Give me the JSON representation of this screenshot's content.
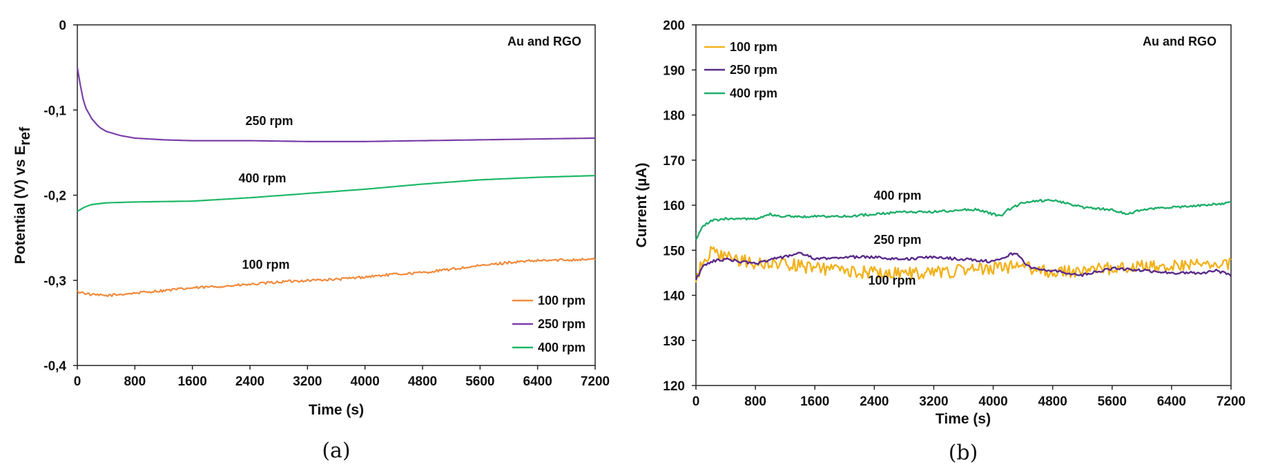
{
  "colors": {
    "r100": "#f08a3c",
    "r250": "#7a3fa8",
    "r400": "#1db866",
    "r100_b": "#f2b21c",
    "r250_b": "#5a2a8a",
    "r400_b": "#1fae6a"
  },
  "captions": {
    "a": "(a)",
    "b": "(b)"
  },
  "chart_data": [
    {
      "type": "line",
      "panel": "a",
      "title": "",
      "annotation": "Au and RGO",
      "xlabel": "Time (s)",
      "ylabel": "Potential (V) vs E",
      "ylabel_sub": "ref",
      "xlim": [
        0,
        7200
      ],
      "ylim": [
        -0.4,
        0
      ],
      "xticks": [
        0,
        800,
        1600,
        2400,
        3200,
        4000,
        4800,
        5600,
        6400,
        7200
      ],
      "xtick_labels": [
        "0",
        "800",
        "1600",
        "2400",
        "3200",
        "4000",
        "4800",
        "5600",
        "6400",
        "7200"
      ],
      "yticks": [
        0,
        -0.1,
        -0.2,
        -0.3,
        -0.4
      ],
      "ytick_labels": [
        "0",
        "-0,1",
        "-0,2",
        "-0,3",
        "-0,4"
      ],
      "legend": "lower-right",
      "series": [
        {
          "name": "100 rpm",
          "label": "100 rpm",
          "x": [
            0,
            200,
            400,
            800,
            1200,
            1600,
            2000,
            2400,
            2800,
            3200,
            3600,
            4000,
            4400,
            4800,
            5200,
            5600,
            6000,
            6400,
            6800,
            7200
          ],
          "y": [
            -0.313,
            -0.317,
            -0.318,
            -0.315,
            -0.312,
            -0.309,
            -0.307,
            -0.305,
            -0.302,
            -0.3,
            -0.299,
            -0.296,
            -0.293,
            -0.291,
            -0.287,
            -0.283,
            -0.279,
            -0.277,
            -0.276,
            -0.275
          ],
          "noise": 0.0015
        },
        {
          "name": "250 rpm",
          "label": "250 rpm",
          "x": [
            0,
            50,
            100,
            200,
            300,
            400,
            600,
            800,
            1200,
            1600,
            2400,
            3200,
            4000,
            4800,
            5600,
            6400,
            7200
          ],
          "y": [
            -0.05,
            -0.075,
            -0.095,
            -0.11,
            -0.12,
            -0.125,
            -0.13,
            -0.133,
            -0.135,
            -0.136,
            -0.136,
            -0.137,
            -0.137,
            -0.136,
            -0.135,
            -0.134,
            -0.133
          ],
          "noise": 0
        },
        {
          "name": "400 rpm",
          "label": "400 rpm",
          "x": [
            0,
            100,
            200,
            400,
            800,
            1600,
            2400,
            3200,
            4000,
            4800,
            5600,
            6400,
            7200
          ],
          "y": [
            -0.219,
            -0.214,
            -0.211,
            -0.209,
            -0.208,
            -0.207,
            -0.203,
            -0.198,
            -0.193,
            -0.187,
            -0.182,
            -0.179,
            -0.177
          ],
          "noise": 0
        }
      ]
    },
    {
      "type": "line",
      "panel": "b",
      "title": "",
      "annotation": "Au and RGO",
      "xlabel": "Time (s)",
      "ylabel": "Current (µA)",
      "xlim": [
        0,
        7200
      ],
      "ylim": [
        120,
        200
      ],
      "xticks": [
        0,
        800,
        1600,
        2400,
        3200,
        4000,
        4800,
        5600,
        6400,
        7200
      ],
      "xtick_labels": [
        "0",
        "800",
        "1600",
        "2400",
        "3200",
        "4000",
        "4800",
        "5600",
        "6400",
        "7200"
      ],
      "yticks": [
        120,
        130,
        140,
        150,
        160,
        170,
        180,
        190,
        200
      ],
      "ytick_labels": [
        "120",
        "130",
        "140",
        "150",
        "160",
        "170",
        "180",
        "190",
        "200"
      ],
      "legend": "top-left",
      "series": [
        {
          "name": "100 rpm",
          "label": "100 rpm",
          "x": [
            0,
            100,
            200,
            400,
            800,
            1200,
            1600,
            2000,
            2400,
            2800,
            3200,
            3600,
            4000,
            4400,
            4800,
            5200,
            5600,
            6000,
            6400,
            6800,
            7200
          ],
          "y": [
            143,
            148,
            149.5,
            148.5,
            147,
            147,
            146,
            145.5,
            145,
            145,
            145,
            145.5,
            146,
            146.5,
            145,
            145.5,
            146,
            146.5,
            146.5,
            147,
            147
          ],
          "noise": 1.4
        },
        {
          "name": "250 rpm",
          "label": "250 rpm",
          "x": [
            0,
            100,
            200,
            400,
            600,
            800,
            1000,
            1200,
            1400,
            1600,
            2000,
            2400,
            2800,
            3200,
            3600,
            4000,
            4300,
            4500,
            4800,
            5000,
            5200,
            5600,
            6000,
            6400,
            6800,
            7000,
            7200
          ],
          "y": [
            143.5,
            146.5,
            147.5,
            148,
            147.5,
            147,
            148,
            148.5,
            149.5,
            148,
            148.5,
            148.5,
            148,
            148.5,
            148,
            147.5,
            149.5,
            146,
            145.5,
            145,
            144.5,
            146,
            145.5,
            145,
            145,
            145.5,
            144.5
          ],
          "noise": 0.3
        },
        {
          "name": "400 rpm",
          "label": "400 rpm",
          "x": [
            0,
            100,
            200,
            400,
            800,
            1000,
            1100,
            1400,
            1600,
            2000,
            2400,
            2800,
            3200,
            3600,
            3800,
            4100,
            4200,
            4400,
            4600,
            4800,
            5000,
            5200,
            5600,
            5800,
            6000,
            6400,
            6800,
            7200
          ],
          "y": [
            152.5,
            155.5,
            156.5,
            157,
            157,
            158,
            157.5,
            157.5,
            157.5,
            157.5,
            158,
            158.5,
            158.5,
            159,
            159,
            157.5,
            159,
            160.5,
            161,
            161,
            160.5,
            159.5,
            159,
            158,
            159,
            159.5,
            160,
            160.5
          ],
          "noise": 0.25
        }
      ]
    }
  ]
}
